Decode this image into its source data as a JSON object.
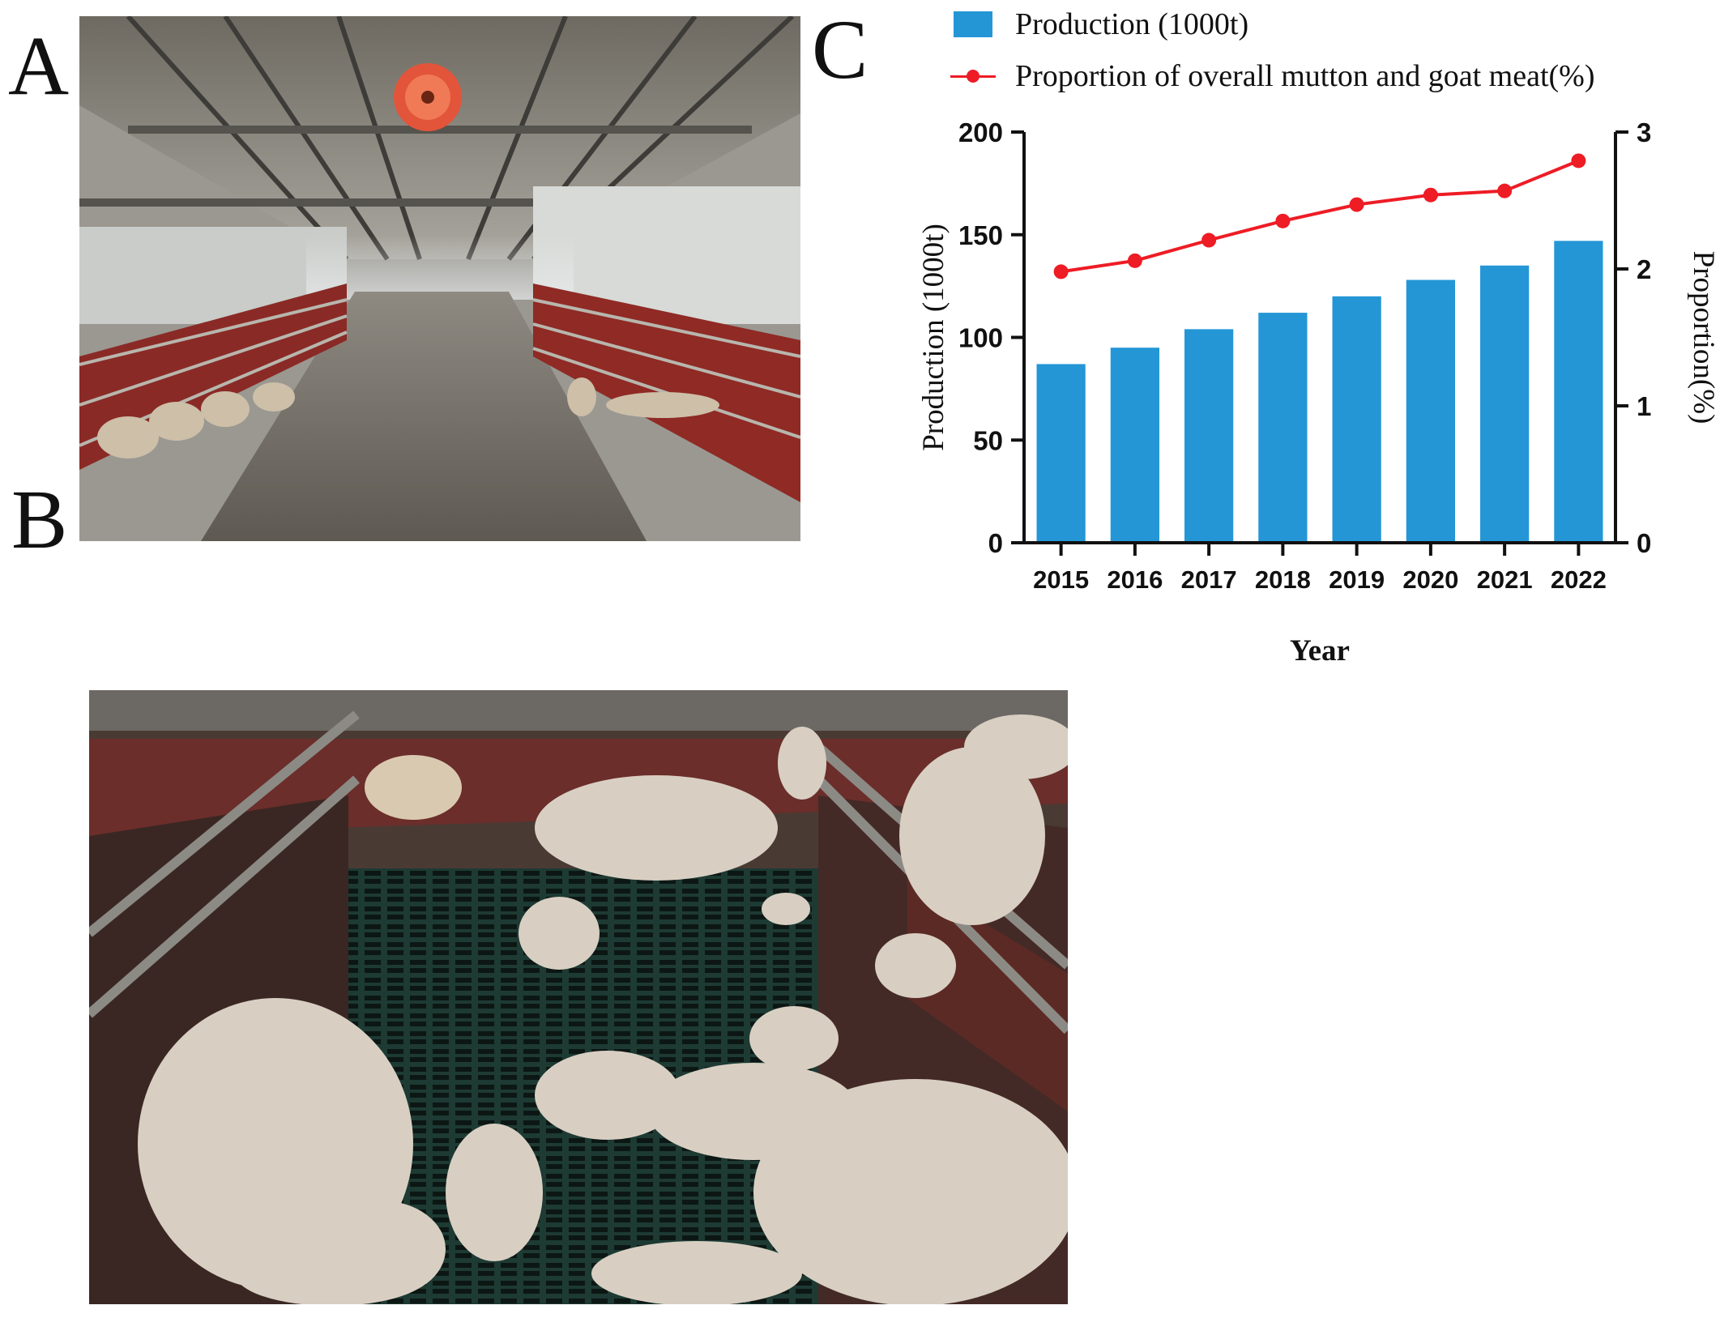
{
  "figure": {
    "panel_labels": {
      "a": "A",
      "b": "B",
      "c": "C"
    },
    "photo_a": {
      "subject": "sheep-barn-interior-photo"
    },
    "photo_b": {
      "subject": "sheep-pen-photo"
    }
  },
  "chart_data": {
    "type": "bar",
    "categories": [
      "2015",
      "2016",
      "2017",
      "2018",
      "2019",
      "2020",
      "2021",
      "2022"
    ],
    "series": [
      {
        "name": "Production (1000t)",
        "type": "bar",
        "axis": "left",
        "color": "#2496d6",
        "values": [
          87,
          95,
          104,
          112,
          120,
          128,
          135,
          147
        ]
      },
      {
        "name": "Proportion of overall mutton and goat meat(%)",
        "type": "line",
        "axis": "right",
        "color": "#ee1c25",
        "values": [
          1.98,
          2.06,
          2.21,
          2.35,
          2.47,
          2.54,
          2.57,
          2.79
        ]
      }
    ],
    "xlabel": "Year",
    "ylabel": "Production (1000t)",
    "y2label": "Proportion(%)",
    "ylim": [
      0,
      200
    ],
    "yticks": [
      0,
      50,
      100,
      150,
      200
    ],
    "y2lim": [
      0,
      3
    ],
    "y2ticks": [
      0,
      1,
      2,
      3
    ],
    "grid": false,
    "legend_position": "top"
  }
}
